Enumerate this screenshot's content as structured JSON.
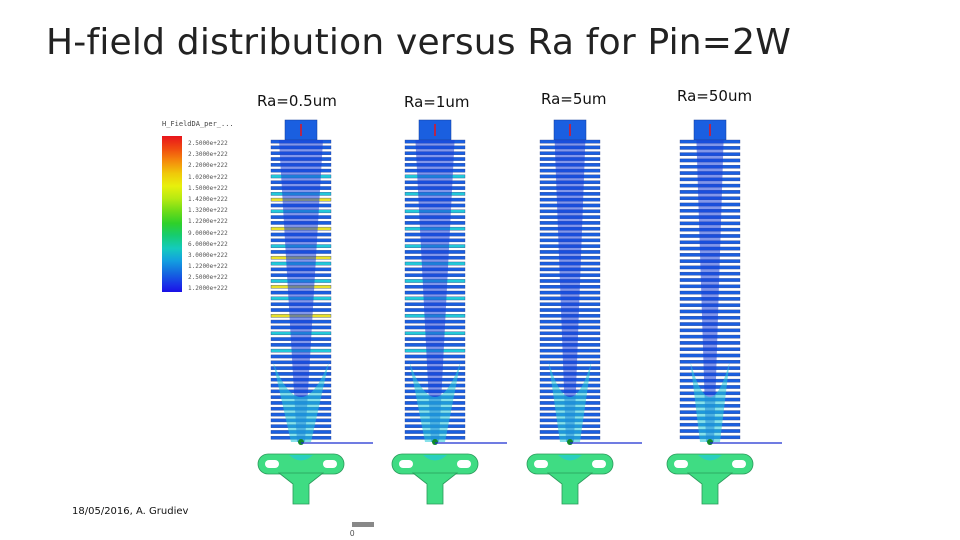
{
  "slide": {
    "title": "H-field distribution versus Ra for Pin=2W",
    "footer": "18/05/2016, A. Grudiev"
  },
  "legend": {
    "header": "H_FieldDA_per_...",
    "values": [
      "2.5000e+222",
      "2.3000e+222",
      "2.2000e+222",
      "1.0200e+222",
      "1.5000e+222",
      "1.4200e+222",
      "1.3200e+222",
      "1.2200e+222",
      "9.0000e+222",
      "6.0000e+222",
      "3.0000e+222",
      "1.2200e+222",
      "2.5000e+222",
      "1.2000e+222"
    ],
    "colors": [
      "#e8141c",
      "#f58a0c",
      "#e8f00c",
      "#6fdc18",
      "#14cbbd",
      "#1467e0",
      "#1a10e6"
    ]
  },
  "panels": [
    {
      "label": "Ra=0.5um",
      "ridge_count": 52,
      "field_spread": 1.0
    },
    {
      "label": "Ra=1um",
      "ridge_count": 52,
      "field_spread": 0.8
    },
    {
      "label": "Ra=5um",
      "ridge_count": 52,
      "field_spread": 0.45
    },
    {
      "label": "Ra=50um",
      "ridge_count": 48,
      "field_spread": 0.3
    }
  ],
  "scale_bar": {
    "zero_label": "0"
  },
  "colors": {
    "structure_blue": "#1a5fe0",
    "core_blue": "#1a3fd8",
    "cyan": "#22c9d8",
    "green": "#3cd86a",
    "yellow": "#e8e02a",
    "coupler_green": "#3fdc83",
    "line_blue": "#1a2fd0"
  }
}
